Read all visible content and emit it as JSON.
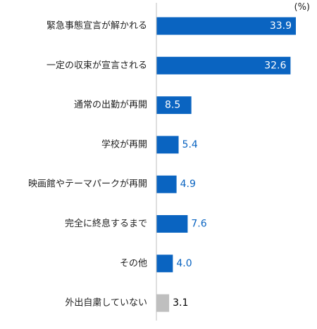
{
  "chart_data": {
    "type": "bar",
    "orientation": "horizontal",
    "unit_label": "(%)",
    "categories": [
      "緊急事態宣言が解かれる",
      "一定の収束が宣言される",
      "通常の出勤が再開",
      "学校が再開",
      "映画館やテーマパークが再開",
      "完全に終息するまで",
      "その他",
      "外出自粛していない"
    ],
    "values": [
      33.9,
      32.6,
      8.5,
      5.4,
      4.9,
      7.6,
      4.0,
      3.1
    ],
    "value_labels": [
      "33.9",
      "32.6",
      "8.5",
      "5.4",
      "4.9",
      "7.6",
      "4.0",
      "3.1"
    ],
    "xlim": [
      0,
      35
    ],
    "grid": false,
    "legend": "none",
    "colors": {
      "bar": "#0a64c1",
      "bar_last": "#bfbfbf",
      "label_inside": "#ffffff",
      "label_outside": "#0a64c1",
      "label_last": "#000000",
      "axis": "#bfbfbf",
      "category_text": "#222222"
    }
  }
}
